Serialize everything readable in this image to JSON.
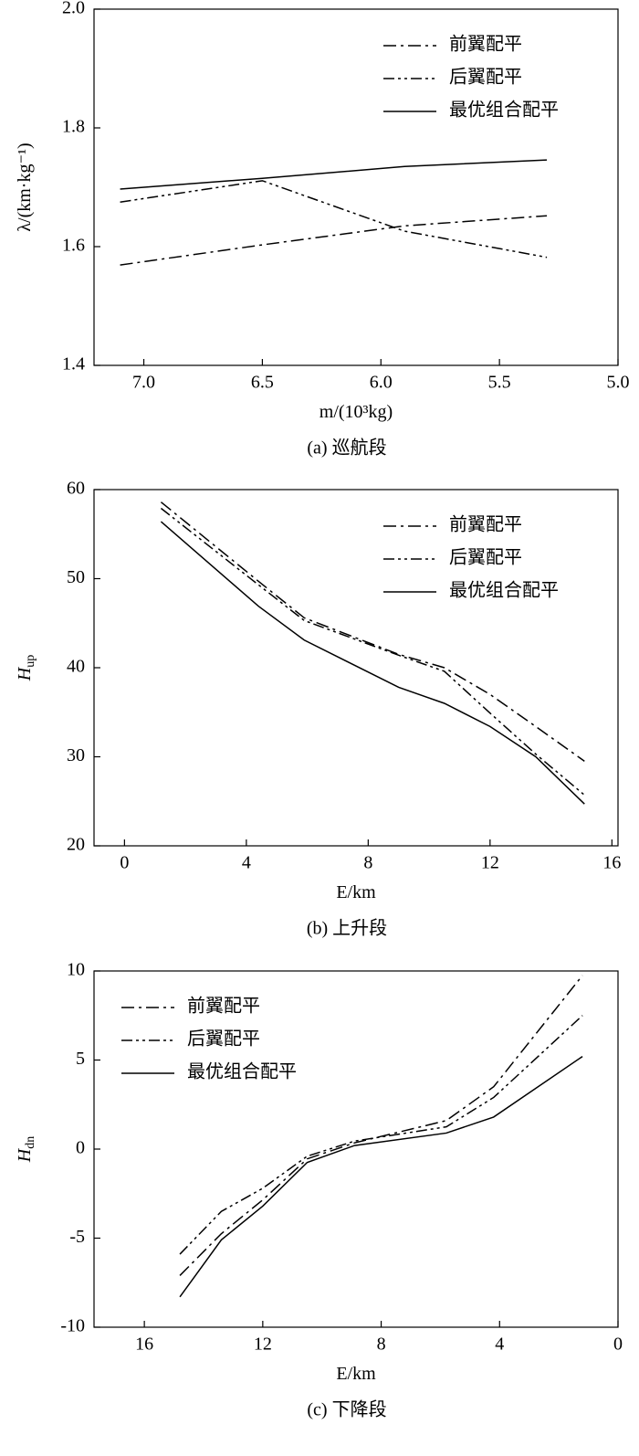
{
  "chart_data": [
    {
      "type": "line",
      "caption": "(a) 巡航段",
      "xlabel": "m/(10³kg)",
      "ylabel": "λ/(km·kg⁻¹)",
      "x": [
        7.1,
        6.5,
        5.9,
        5.3
      ],
      "xlim": [
        7.21,
        5.0
      ],
      "xticks": [
        {
          "value": 7,
          "label": "7.0"
        },
        6.5,
        {
          "value": 6,
          "label": "6.0"
        },
        5.5,
        {
          "value": 5,
          "label": "5.0"
        }
      ],
      "ylim": [
        1.4,
        2.0
      ],
      "yticks": [
        1.4,
        1.6,
        1.8,
        {
          "value": 2,
          "label": "2.0"
        }
      ],
      "legend": "upper right",
      "series": [
        {
          "name": "前翼配平",
          "color": "#000000",
          "linestyle": "dashdot",
          "values": [
            1.569,
            1.603,
            1.635,
            1.652
          ]
        },
        {
          "name": "后翼配平",
          "color": "#000000",
          "linestyle": "dashdotdot",
          "values": [
            1.675,
            1.711,
            1.626,
            1.582
          ]
        },
        {
          "name": "最优组合配平",
          "color": "#000000",
          "linestyle": "solid",
          "values": [
            1.697,
            1.715,
            1.735,
            1.746
          ]
        }
      ]
    },
    {
      "type": "line",
      "caption": "(b) 上升段",
      "xlabel": "E/km",
      "ylabel": [
        "H",
        "up"
      ],
      "x": [
        1.2,
        4.4,
        5.9,
        9,
        10.5,
        12,
        13.5,
        15.1
      ],
      "xlim": [
        -1,
        16.2
      ],
      "xticks": [
        0,
        4,
        8,
        12,
        16
      ],
      "ylim": [
        20,
        60
      ],
      "yticks": [
        20,
        30,
        40,
        50,
        60
      ],
      "legend": "upper right",
      "series": [
        {
          "name": "前翼配平",
          "color": "#000000",
          "linestyle": "dashdot",
          "values": [
            58.6,
            49.7,
            45.6,
            41.5,
            40.0,
            37.0,
            33.4,
            29.5
          ]
        },
        {
          "name": "后翼配平",
          "color": "#000000",
          "linestyle": "dashdotdot",
          "values": [
            57.9,
            49.3,
            45.3,
            41.4,
            39.6,
            34.9,
            30.3,
            25.7
          ]
        },
        {
          "name": "最优组合配平",
          "color": "#000000",
          "linestyle": "solid",
          "values": [
            56.4,
            46.9,
            43.1,
            37.8,
            36.0,
            33.4,
            30.0,
            24.7
          ]
        }
      ]
    },
    {
      "type": "line",
      "caption": "(c) 下降段",
      "xlabel": "E/km",
      "ylabel": [
        "H",
        "dn"
      ],
      "x": [
        14.8,
        13.4,
        12,
        10.5,
        8.9,
        5.8,
        4.2,
        1.2
      ],
      "xlim": [
        17.7,
        0
      ],
      "xticks": [
        16,
        12,
        8,
        4,
        0
      ],
      "ylim": [
        -10,
        10
      ],
      "yticks": [
        -10,
        -5,
        0,
        5,
        10
      ],
      "legend": "upper left",
      "series": [
        {
          "name": "前翼配平",
          "color": "#000000",
          "linestyle": "dashdot",
          "values": [
            -7.1,
            -4.75,
            -2.85,
            -0.55,
            0.35,
            1.6,
            3.5,
            9.75
          ]
        },
        {
          "name": "后翼配平",
          "color": "#000000",
          "linestyle": "dashdotdot",
          "values": [
            -5.9,
            -3.5,
            -2.2,
            -0.4,
            0.45,
            1.25,
            2.9,
            7.5
          ]
        },
        {
          "name": "最优组合配平",
          "color": "#000000",
          "linestyle": "solid",
          "values": [
            -8.3,
            -5.1,
            -3.2,
            -0.75,
            0.2,
            0.9,
            1.8,
            5.2
          ]
        }
      ]
    }
  ]
}
